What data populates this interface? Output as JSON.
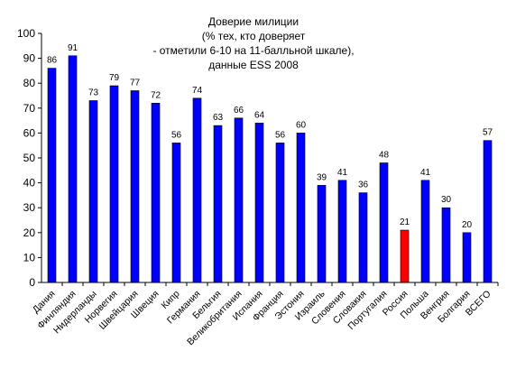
{
  "chart_data": {
    "type": "bar",
    "title_lines": [
      "Доверие милиции",
      "(% тех, кто доверяет",
      "- отметили 6-10 на 11-балльной шкале),",
      "данные ESS 2008"
    ],
    "categories": [
      "Дания",
      "Финляндия",
      "Нидерланды",
      "Норвегия",
      "Швейцария",
      "Швеция",
      "Кипр",
      "Германия",
      "Бельгия",
      "Великобритания",
      "Испания",
      "Франция",
      "Эстония",
      "Израиль",
      "Словения",
      "Словакия",
      "Португалия",
      "Россия",
      "Польша",
      "Венгрия",
      "Болгария",
      "ВСЕГО"
    ],
    "values": [
      86,
      91,
      73,
      79,
      77,
      72,
      56,
      74,
      63,
      66,
      64,
      56,
      60,
      39,
      41,
      36,
      48,
      21,
      41,
      30,
      20,
      57
    ],
    "highlight_category": "Россия",
    "ylim": [
      0,
      100
    ],
    "yticks": [
      0,
      10,
      20,
      30,
      40,
      50,
      60,
      70,
      80,
      90,
      100
    ],
    "xlabel": "",
    "ylabel": "",
    "grid": false,
    "legend": false,
    "colors": {
      "bar": "#0000ff",
      "highlight": "#ff0000",
      "bar_edge": "#000000",
      "axis": "#000000"
    }
  }
}
